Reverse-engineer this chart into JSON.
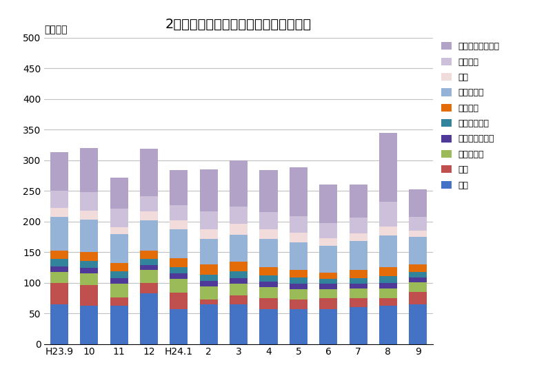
{
  "title": "2人以上の全世帯の平均消費支出の内訳",
  "ylabel": "（千円）",
  "categories": [
    "H23.9",
    "10",
    "11",
    "12",
    "H24.1",
    "2",
    "3",
    "4",
    "5",
    "6",
    "7",
    "8",
    "9"
  ],
  "ylim": [
    0,
    500
  ],
  "yticks": [
    0,
    50,
    100,
    150,
    200,
    250,
    300,
    350,
    400,
    450,
    500
  ],
  "series": [
    {
      "label": "食料",
      "color": "#4472C4",
      "values": [
        65,
        63,
        62,
        83,
        57,
        65,
        65,
        57,
        57,
        57,
        60,
        62,
        65
      ]
    },
    {
      "label": "住居",
      "color": "#C0504D",
      "values": [
        35,
        33,
        14,
        17,
        27,
        8,
        14,
        18,
        16,
        18,
        15,
        13,
        20
      ]
    },
    {
      "label": "光熱・水道",
      "color": "#9BBB59",
      "values": [
        18,
        19,
        22,
        21,
        22,
        21,
        20,
        18,
        17,
        15,
        16,
        16,
        16
      ]
    },
    {
      "label": "家具・家事用品",
      "color": "#4F3999",
      "values": [
        9,
        9,
        10,
        8,
        9,
        9,
        9,
        9,
        9,
        8,
        8,
        9,
        8
      ]
    },
    {
      "label": "被服及び履物",
      "color": "#31849B",
      "values": [
        12,
        12,
        11,
        10,
        10,
        10,
        11,
        10,
        10,
        8,
        9,
        11,
        9
      ]
    },
    {
      "label": "保健医療",
      "color": "#E36C09",
      "values": [
        13,
        14,
        13,
        14,
        15,
        17,
        15,
        14,
        12,
        11,
        13,
        14,
        12
      ]
    },
    {
      "label": "交通・通信",
      "color": "#95B3D7",
      "values": [
        55,
        53,
        48,
        49,
        47,
        42,
        44,
        46,
        45,
        43,
        47,
        52,
        45
      ]
    },
    {
      "label": "教育",
      "color": "#F2DCDB",
      "values": [
        15,
        15,
        11,
        14,
        15,
        15,
        18,
        15,
        16,
        13,
        13,
        15,
        10
      ]
    },
    {
      "label": "教養娯楽",
      "color": "#CCC0DA",
      "values": [
        28,
        30,
        30,
        25,
        25,
        30,
        28,
        28,
        27,
        24,
        25,
        40,
        22
      ]
    },
    {
      "label": "その他の消費支出",
      "color": "#B3A2C7",
      "values": [
        63,
        72,
        51,
        78,
        57,
        68,
        76,
        69,
        80,
        63,
        54,
        113,
        46
      ]
    }
  ],
  "background_color": "#FFFFFF",
  "plot_bg_color": "#FFFFFF",
  "grid_color": "#C0C0C0",
  "title_fontsize": 14,
  "tick_fontsize": 10,
  "legend_fontsize": 9
}
